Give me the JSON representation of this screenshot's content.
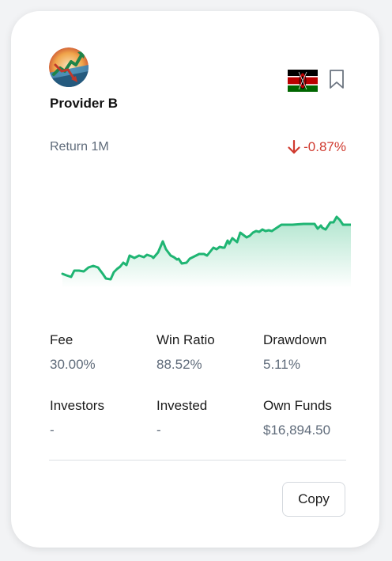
{
  "provider": {
    "name": "Provider B",
    "avatar_icon": "trading-chart-logo-icon",
    "country_flag": "kenya-flag-icon"
  },
  "performance": {
    "period_label": "Return 1M",
    "return_value": "-0.87%",
    "direction_icon": "arrow-down-icon",
    "negative_color": "#d03a2f",
    "line_color": "#1fb573"
  },
  "stats": {
    "fee": {
      "label": "Fee",
      "value": "30.00%"
    },
    "win_ratio": {
      "label": "Win Ratio",
      "value": "88.52%"
    },
    "drawdown": {
      "label": "Drawdown",
      "value": "5.11%"
    },
    "investors": {
      "label": "Investors",
      "value": "-"
    },
    "invested": {
      "label": "Invested",
      "value": "-"
    },
    "own_funds": {
      "label": "Own Funds",
      "value": "$16,894.50"
    }
  },
  "actions": {
    "copy_label": "Copy"
  }
}
